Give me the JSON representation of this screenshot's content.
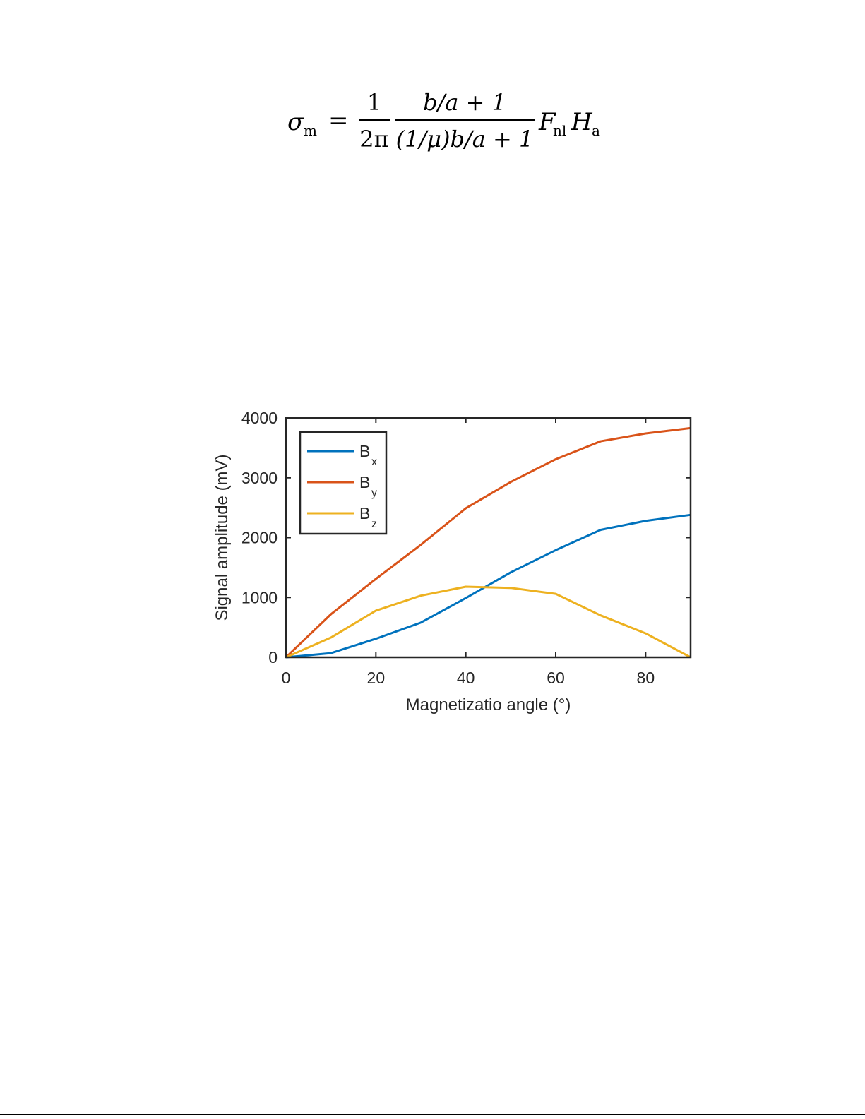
{
  "formula": {
    "lhs_sigma": "σ",
    "lhs_sub": "m",
    "equals": "=",
    "frac1_num": "1",
    "frac1_den": "2π",
    "frac2_num": "b/a + 1",
    "frac2_den": "(1/μ)b/a + 1",
    "F": "F",
    "F_sub": "nl",
    "H": "H",
    "H_sub": "a"
  },
  "chart_data": {
    "type": "line",
    "title": "",
    "xlabel": "Magnetizatio angle (°)",
    "ylabel": "Signal amplitude (mV)",
    "xlim": [
      0,
      90
    ],
    "ylim": [
      0,
      4000
    ],
    "xticks": [
      0,
      20,
      40,
      60,
      80
    ],
    "yticks": [
      0,
      1000,
      2000,
      3000,
      4000
    ],
    "grid": false,
    "legend": "top-left",
    "x": [
      0,
      10,
      20,
      30,
      40,
      50,
      60,
      70,
      80,
      90
    ],
    "series": [
      {
        "name": "B",
        "sub": "x",
        "color": "#0072BD",
        "values": [
          0,
          70,
          310,
          580,
          990,
          1420,
          1790,
          2130,
          2280,
          2380
        ]
      },
      {
        "name": "B",
        "sub": "y",
        "color": "#D95319",
        "values": [
          0,
          720,
          1310,
          1880,
          2490,
          2930,
          3310,
          3610,
          3740,
          3830
        ]
      },
      {
        "name": "B",
        "sub": "z",
        "color": "#EDB120",
        "values": [
          0,
          330,
          780,
          1030,
          1180,
          1160,
          1060,
          700,
          400,
          0
        ]
      }
    ]
  }
}
